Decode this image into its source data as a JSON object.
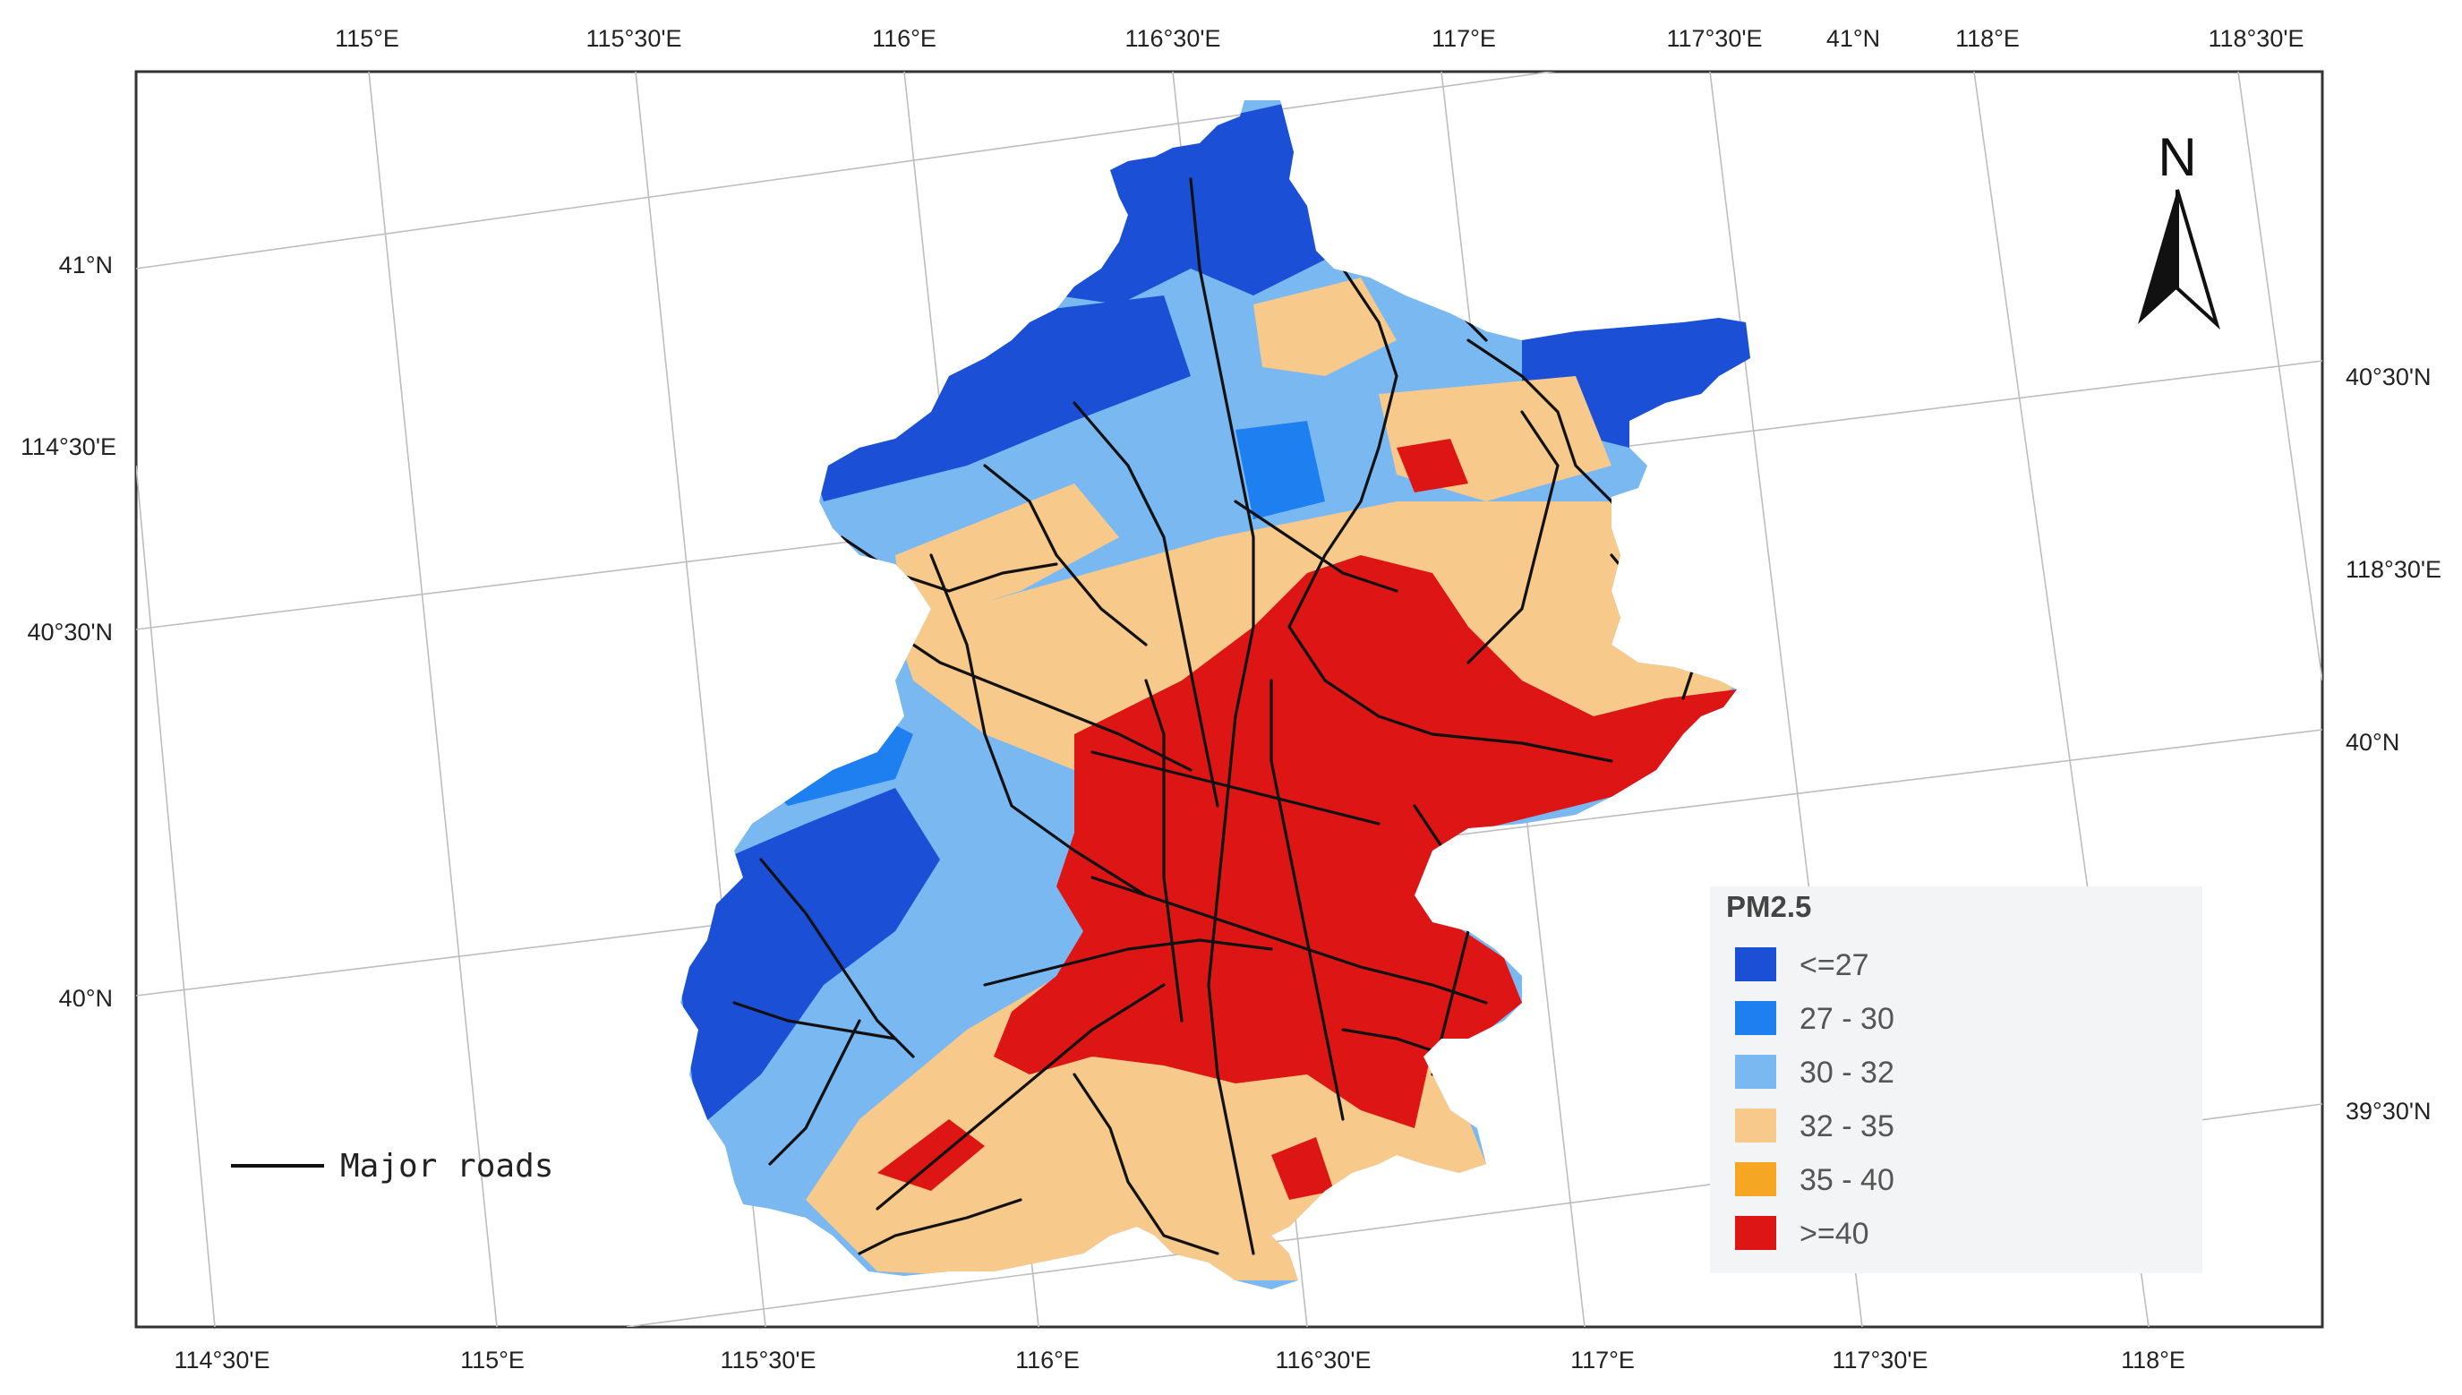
{
  "map": {
    "top_labels": [
      "115°E",
      "115°30'E",
      "116°E",
      "116°30'E",
      "117°E",
      "117°30'E",
      "41°N",
      "118°E",
      "118°30'E"
    ],
    "bottom_labels": [
      "114°30'E",
      "115°E",
      "115°30'E",
      "116°E",
      "116°30'E",
      "117°E",
      "117°30'E",
      "118°E"
    ],
    "left_labels": [
      "41°N",
      "114°30'E",
      "40°30'N",
      "40°N"
    ],
    "right_labels": [
      "40°30'N",
      "118°30'E",
      "40°N",
      "39°30'N"
    ],
    "north_arrow": {
      "letter": "N",
      "icon": "north-arrow-icon"
    },
    "roads_legend": {
      "label": "Major roads",
      "color": "#111111"
    },
    "legend": {
      "title": "PM2.5",
      "items": [
        {
          "label": "<=27",
          "color": "#1a4fd6"
        },
        {
          "label": "27 - 30",
          "color": "#1e7ff0"
        },
        {
          "label": "30 - 32",
          "color": "#7ab8f2"
        },
        {
          "label": "32 - 35",
          "color": "#f7c98a"
        },
        {
          "label": "35 - 40",
          "color": "#f5a623"
        },
        {
          "label": ">=40",
          "color": "#dd1515"
        }
      ]
    }
  }
}
